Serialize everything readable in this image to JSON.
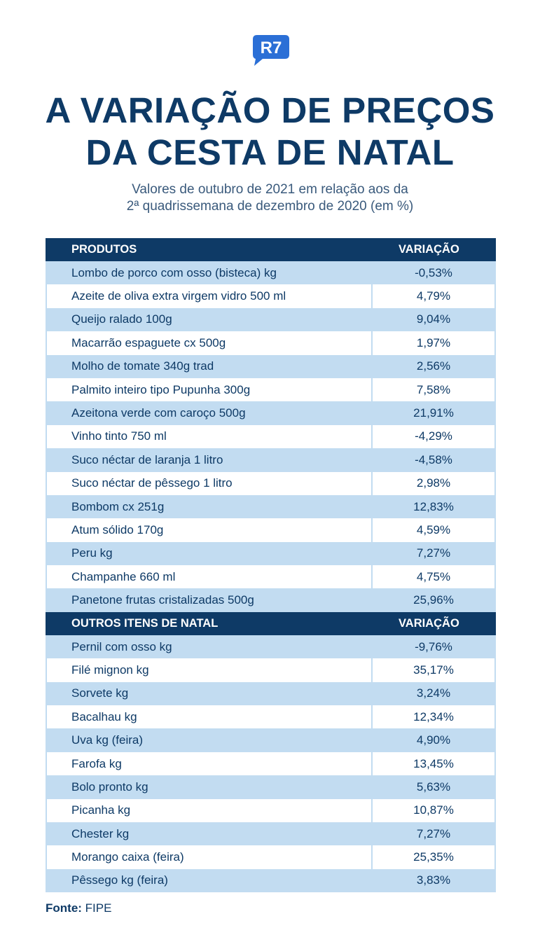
{
  "brand": {
    "logo_text": "R7",
    "color": "#2b6fd6"
  },
  "title_lines": [
    "A VARIAÇÃO DE PREÇOS",
    "DA CESTA DE NATAL"
  ],
  "subtitle_lines": [
    "Valores de outubro de 2021 em relação aos da",
    "2ª quadrissemana de dezembro de 2020 (em %)"
  ],
  "colors": {
    "header": "#0e3a66",
    "stripe": "#c2dcf1",
    "text": "#0e3a66"
  },
  "sections": [
    {
      "header": {
        "product": "PRODUTOS",
        "variation": "VARIAÇÃO"
      },
      "rows": [
        {
          "product": "Lombo de porco com osso (bisteca) kg",
          "variation": "-0,53%"
        },
        {
          "product": "Azeite de oliva extra virgem vidro 500 ml",
          "variation": "4,79%"
        },
        {
          "product": "Queijo ralado 100g",
          "variation": "9,04%"
        },
        {
          "product": "Macarrão espaguete cx 500g",
          "variation": "1,97%"
        },
        {
          "product": "Molho de tomate 340g trad",
          "variation": "2,56%"
        },
        {
          "product": "Palmito inteiro tipo Pupunha 300g",
          "variation": "7,58%"
        },
        {
          "product": "Azeitona verde com caroço 500g",
          "variation": "21,91%"
        },
        {
          "product": "Vinho tinto 750 ml",
          "variation": "-4,29%"
        },
        {
          "product": "Suco néctar de laranja 1 litro",
          "variation": "-4,58%"
        },
        {
          "product": "Suco néctar de pêssego 1 litro",
          "variation": "2,98%"
        },
        {
          "product": "Bombom cx 251g",
          "variation": "12,83%"
        },
        {
          "product": "Atum sólido 170g",
          "variation": "4,59%"
        },
        {
          "product": "Peru kg",
          "variation": "7,27%"
        },
        {
          "product": "Champanhe 660 ml",
          "variation": "4,75%"
        },
        {
          "product": "Panetone frutas cristalizadas 500g",
          "variation": "25,96%"
        }
      ]
    },
    {
      "header": {
        "product": "OUTROS ITENS DE NATAL",
        "variation": "VARIAÇÃO"
      },
      "rows": [
        {
          "product": "Pernil com osso kg",
          "variation": "-9,76%"
        },
        {
          "product": "Filé mignon kg",
          "variation": "35,17%"
        },
        {
          "product": "Sorvete kg",
          "variation": "3,24%"
        },
        {
          "product": "Bacalhau kg",
          "variation": "12,34%"
        },
        {
          "product": "Uva kg (feira)",
          "variation": "4,90%"
        },
        {
          "product": "Farofa kg",
          "variation": "13,45%"
        },
        {
          "product": "Bolo pronto kg",
          "variation": "5,63%"
        },
        {
          "product": "Picanha kg",
          "variation": "10,87%"
        },
        {
          "product": "Chester  kg",
          "variation": "7,27%"
        },
        {
          "product": "Morango caixa (feira)",
          "variation": "25,35%"
        },
        {
          "product": "Pêssego kg (feira)",
          "variation": "3,83%"
        }
      ]
    }
  ],
  "source": {
    "label": "Fonte:",
    "value": "FIPE"
  }
}
